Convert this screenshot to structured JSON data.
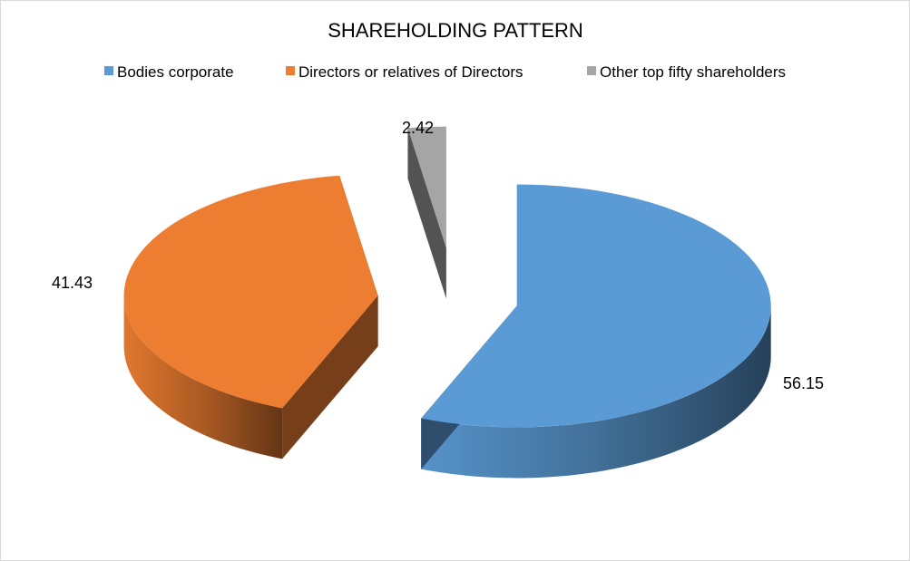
{
  "chart_data": {
    "type": "pie",
    "title": "SHAREHOLDING PATTERN",
    "legend_position": "top",
    "categories": [
      "Bodies corporate",
      "Directors or relatives of Directors",
      "Other top fifty shareholders"
    ],
    "values": [
      56.15,
      41.43,
      2.42
    ],
    "labels": [
      "56.15",
      "41.43",
      "2.42"
    ],
    "colors": [
      "#5b9bd5",
      "#ed7d31",
      "#a5a5a5"
    ],
    "exploded": true,
    "style": "3d"
  }
}
